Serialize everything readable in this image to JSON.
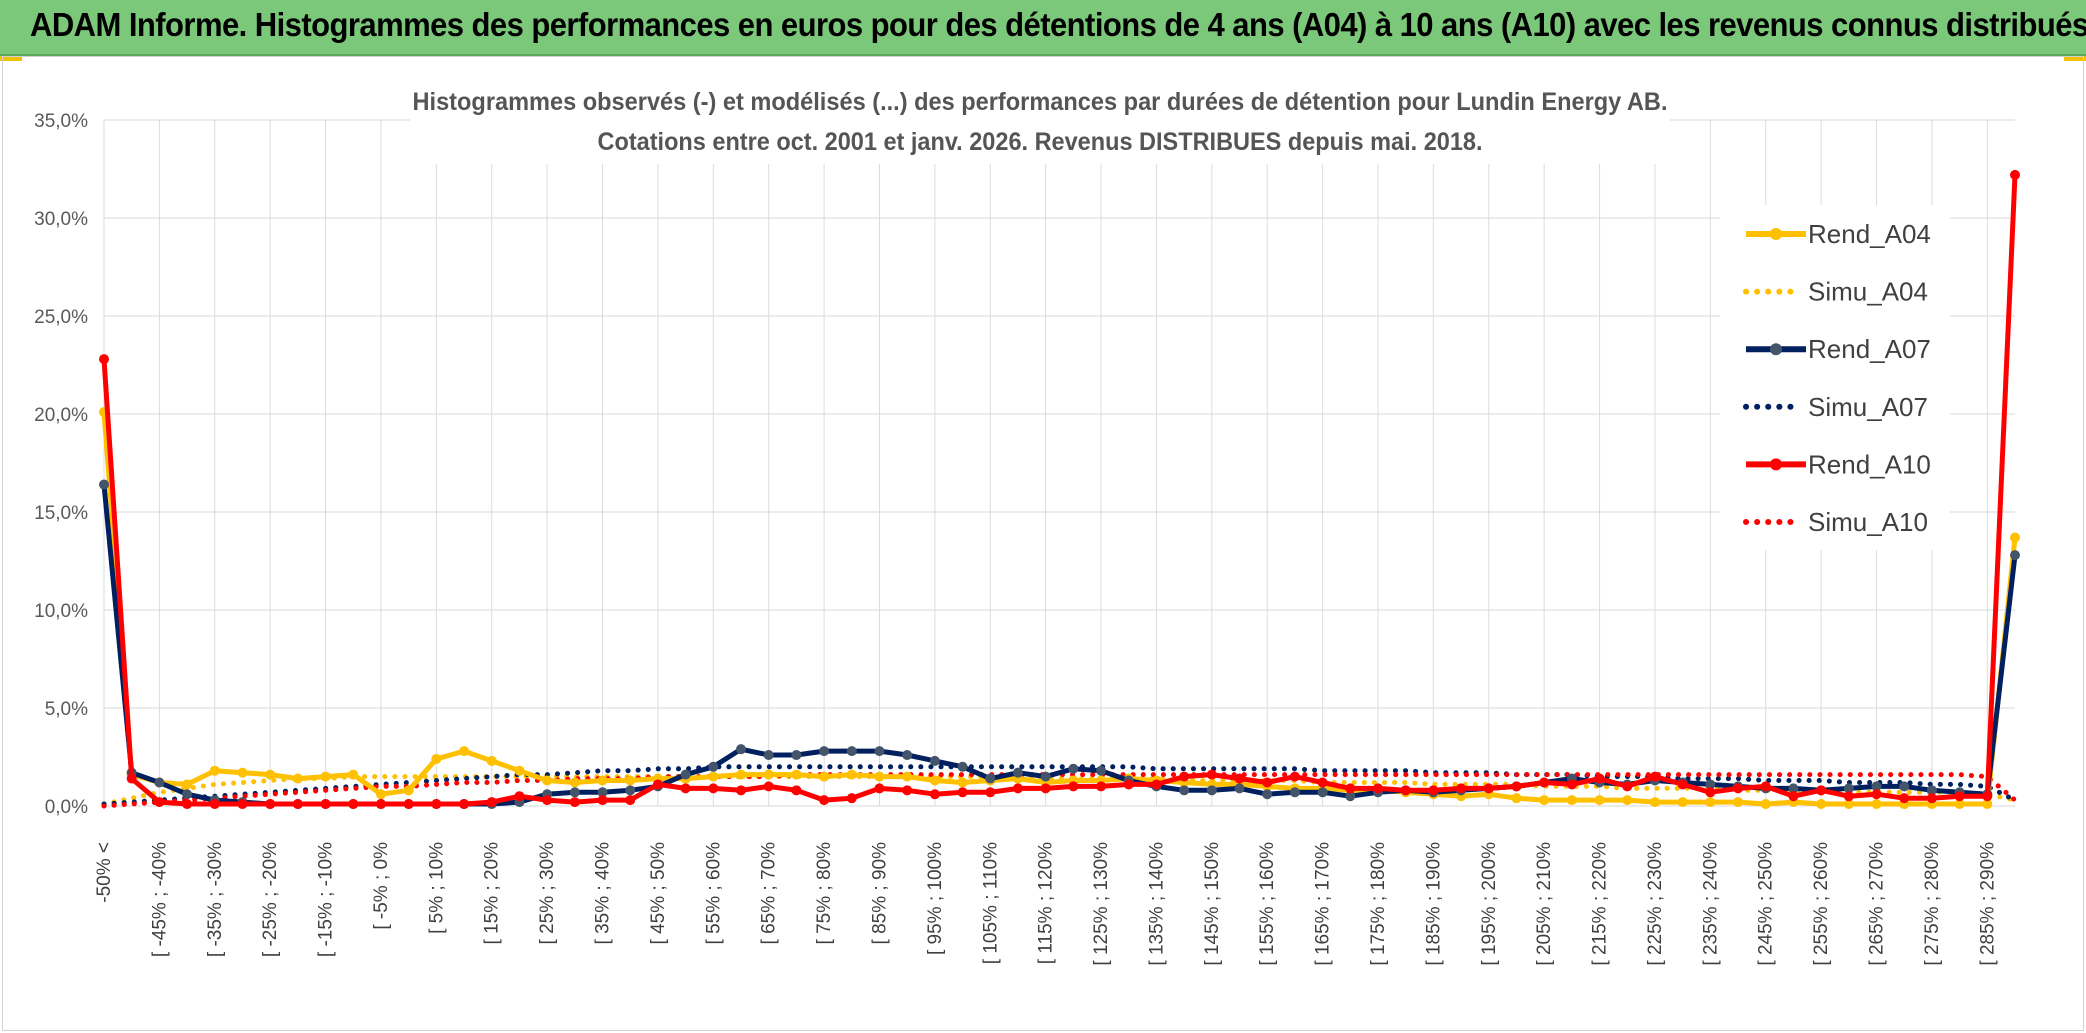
{
  "banner": {
    "title": "ADAM Informe. Histogrammes des performances en euros pour des détentions de 4 ans (A04) à 10 ans (A10) avec les revenus connus distribués"
  },
  "colors": {
    "banner": "#7cc87a",
    "A04": "#ffc000",
    "A07": "#002060",
    "A10": "#ff0000",
    "grid": "#d9d9d9"
  },
  "chart_data": {
    "type": "line",
    "title": "Histogrammes observés (-) et modélisés (...) des performances par durées de détention pour Lundin Energy AB.",
    "subtitle": "Cotations entre oct. 2001 et janv. 2026. Revenus DISTRIBUES depuis mai. 2018.",
    "xlabel": "",
    "ylabel": "",
    "ylim": [
      0,
      35
    ],
    "yticks": [
      "0,0%",
      "5,0%",
      "10,0%",
      "15,0%",
      "20,0%",
      "25,0%",
      "30,0%",
      "35,0%"
    ],
    "tick_labels": [
      "-50% <",
      "[ -45% ; -40%",
      "[ -35% ; -30%",
      "[ -25% ; -20%",
      "[ -15% ; -10%",
      "[ -5% ; 0%",
      "[ 5% ; 10%",
      "[ 15% ; 20%",
      "[ 25% ; 30%",
      "[ 35% ; 40%",
      "[ 45% ; 50%",
      "[ 55% ; 60%",
      "[ 65% ; 70%",
      "[ 75% ; 80%",
      "[ 85% ; 90%",
      "[ 95% ; 100%",
      "[ 105% ; 110%",
      "[ 115% ; 120%",
      "[ 125% ; 130%",
      "[ 135% ; 140%",
      "[ 145% ; 150%",
      "[ 155% ; 160%",
      "[ 165% ; 170%",
      "[ 175% ; 180%",
      "[ 185% ; 190%",
      "[ 195% ; 200%",
      "[ 205% ; 210%",
      "[ 215% ; 220%",
      "[ 225% ; 230%",
      "[ 235% ; 240%",
      "[ 245% ; 250%",
      "[ 255% ; 260%",
      "[ 265% ; 270%",
      "[ 275% ; 280%",
      "[ 285% ; 290%"
    ],
    "n_bins": 70,
    "legend_position": "right",
    "grid": true,
    "series": [
      {
        "name": "Rend_A04",
        "style": "solid",
        "color": "#ffc000",
        "values": [
          20.1,
          1.6,
          1.2,
          1.1,
          1.8,
          1.7,
          1.6,
          1.4,
          1.5,
          1.6,
          0.6,
          0.8,
          2.4,
          2.8,
          2.3,
          1.8,
          1.3,
          1.2,
          1.3,
          1.3,
          1.4,
          1.4,
          1.5,
          1.6,
          1.6,
          1.6,
          1.5,
          1.6,
          1.5,
          1.5,
          1.3,
          1.2,
          1.3,
          1.4,
          1.2,
          1.3,
          1.3,
          1.4,
          1.3,
          1.2,
          1.1,
          1.1,
          1.0,
          0.9,
          0.9,
          0.8,
          0.8,
          0.7,
          0.6,
          0.5,
          0.6,
          0.4,
          0.3,
          0.3,
          0.3,
          0.3,
          0.2,
          0.2,
          0.2,
          0.2,
          0.1,
          0.2,
          0.1,
          0.1,
          0.1,
          0.1,
          0.1,
          0.1,
          0.1,
          13.7
        ]
      },
      {
        "name": "Simu_A04",
        "style": "dotted",
        "color": "#ffc000",
        "values": [
          0.1,
          0.4,
          0.7,
          0.9,
          1.1,
          1.2,
          1.3,
          1.4,
          1.4,
          1.5,
          1.5,
          1.5,
          1.5,
          1.5,
          1.5,
          1.5,
          1.5,
          1.5,
          1.5,
          1.5,
          1.5,
          1.5,
          1.5,
          1.5,
          1.5,
          1.5,
          1.5,
          1.5,
          1.5,
          1.5,
          1.5,
          1.5,
          1.5,
          1.4,
          1.4,
          1.4,
          1.4,
          1.4,
          1.4,
          1.3,
          1.3,
          1.3,
          1.3,
          1.3,
          1.2,
          1.2,
          1.2,
          1.2,
          1.1,
          1.1,
          1.1,
          1.1,
          1.0,
          1.0,
          1.0,
          0.9,
          0.9,
          0.9,
          0.9,
          0.8,
          0.8,
          0.8,
          0.8,
          0.7,
          0.7,
          0.7,
          0.7,
          0.7,
          0.6,
          0.3
        ]
      },
      {
        "name": "Rend_A07",
        "style": "solid",
        "color": "#002060",
        "values": [
          16.4,
          1.7,
          1.2,
          0.6,
          0.3,
          0.2,
          0.1,
          0.1,
          0.1,
          0.1,
          0.1,
          0.1,
          0.1,
          0.1,
          0.1,
          0.2,
          0.6,
          0.7,
          0.7,
          0.8,
          1.0,
          1.6,
          2.0,
          2.9,
          2.6,
          2.6,
          2.8,
          2.8,
          2.8,
          2.6,
          2.3,
          2.0,
          1.4,
          1.7,
          1.5,
          1.9,
          1.8,
          1.3,
          1.0,
          0.8,
          0.8,
          0.9,
          0.6,
          0.7,
          0.7,
          0.5,
          0.7,
          0.8,
          0.7,
          0.8,
          0.9,
          1.0,
          1.2,
          1.4,
          1.2,
          1.1,
          1.3,
          1.2,
          1.1,
          1.0,
          0.9,
          0.9,
          0.8,
          0.9,
          1.0,
          1.0,
          0.8,
          0.7,
          0.6,
          12.8
        ]
      },
      {
        "name": "Simu_A07",
        "style": "dotted",
        "color": "#002060",
        "values": [
          0.1,
          0.2,
          0.3,
          0.4,
          0.5,
          0.6,
          0.7,
          0.8,
          0.9,
          1.0,
          1.1,
          1.2,
          1.3,
          1.4,
          1.5,
          1.6,
          1.6,
          1.7,
          1.8,
          1.8,
          1.9,
          1.9,
          2.0,
          2.0,
          2.0,
          2.0,
          2.0,
          2.0,
          2.0,
          2.0,
          2.0,
          2.0,
          2.0,
          2.0,
          2.0,
          2.0,
          2.0,
          2.0,
          1.9,
          1.9,
          1.9,
          1.9,
          1.9,
          1.9,
          1.8,
          1.8,
          1.8,
          1.8,
          1.7,
          1.7,
          1.7,
          1.6,
          1.6,
          1.6,
          1.5,
          1.5,
          1.5,
          1.4,
          1.4,
          1.4,
          1.3,
          1.3,
          1.3,
          1.2,
          1.2,
          1.2,
          1.1,
          1.1,
          1.0,
          0.3
        ]
      },
      {
        "name": "Rend_A10",
        "style": "solid",
        "color": "#ff0000",
        "values": [
          22.8,
          1.4,
          0.2,
          0.1,
          0.1,
          0.1,
          0.1,
          0.1,
          0.1,
          0.1,
          0.1,
          0.1,
          0.1,
          0.1,
          0.2,
          0.5,
          0.3,
          0.2,
          0.3,
          0.3,
          1.1,
          0.9,
          0.9,
          0.8,
          1.0,
          0.8,
          0.3,
          0.4,
          0.9,
          0.8,
          0.6,
          0.7,
          0.7,
          0.9,
          0.9,
          1.0,
          1.0,
          1.1,
          1.1,
          1.5,
          1.6,
          1.4,
          1.2,
          1.5,
          1.2,
          0.9,
          0.9,
          0.8,
          0.8,
          0.9,
          0.9,
          1.0,
          1.2,
          1.1,
          1.4,
          1.0,
          1.5,
          1.1,
          0.7,
          0.9,
          1.0,
          0.5,
          0.8,
          0.5,
          0.6,
          0.4,
          0.4,
          0.5,
          0.5,
          32.2
        ]
      },
      {
        "name": "Simu_A10",
        "style": "dotted",
        "color": "#ff0000",
        "values": [
          0.0,
          0.1,
          0.2,
          0.3,
          0.4,
          0.5,
          0.6,
          0.7,
          0.8,
          0.9,
          1.0,
          1.0,
          1.1,
          1.2,
          1.2,
          1.3,
          1.3,
          1.4,
          1.4,
          1.4,
          1.5,
          1.5,
          1.5,
          1.5,
          1.5,
          1.6,
          1.6,
          1.6,
          1.6,
          1.6,
          1.6,
          1.6,
          1.6,
          1.6,
          1.6,
          1.6,
          1.6,
          1.6,
          1.6,
          1.6,
          1.6,
          1.6,
          1.6,
          1.6,
          1.6,
          1.6,
          1.6,
          1.6,
          1.6,
          1.6,
          1.6,
          1.6,
          1.6,
          1.6,
          1.6,
          1.6,
          1.6,
          1.6,
          1.6,
          1.6,
          1.6,
          1.6,
          1.6,
          1.6,
          1.6,
          1.6,
          1.6,
          1.6,
          1.5,
          0.3
        ]
      }
    ]
  }
}
